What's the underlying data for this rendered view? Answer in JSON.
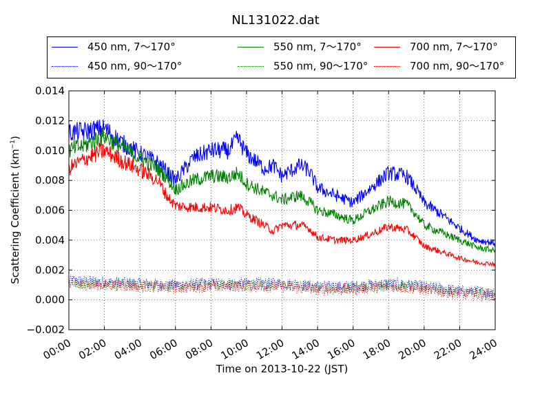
{
  "chart_data": {
    "type": "line",
    "title": "NL131022.dat",
    "xlabel": "Time on 2013-10-22 (JST)",
    "ylabel_main": "Scattering Coefficient (km",
    "ylabel_sup": "−1",
    "ylabel_end": ")",
    "xlim": [
      0,
      24
    ],
    "ylim": [
      -0.002,
      0.014
    ],
    "x_ticks": [
      "00:00",
      "02:00",
      "04:00",
      "06:00",
      "08:00",
      "10:00",
      "12:00",
      "14:00",
      "16:00",
      "18:00",
      "20:00",
      "22:00",
      "24:00"
    ],
    "y_ticks": [
      "−0.002",
      "0.000",
      "0.002",
      "0.004",
      "0.006",
      "0.008",
      "0.010",
      "0.012",
      "0.014"
    ],
    "grid": true,
    "legend_position": "top, above plot, 3 columns",
    "series": [
      {
        "name": "450 nm, 7～170°",
        "color": "#0000ff",
        "style": "solid",
        "x": [
          0,
          1,
          2,
          3,
          4,
          5,
          5.5,
          6,
          7,
          8,
          9,
          9.5,
          10,
          11,
          11.5,
          12,
          13,
          13.5,
          14,
          15,
          16,
          17,
          18,
          19,
          19.5,
          20,
          21,
          22,
          23,
          24
        ],
        "values": [
          0.0112,
          0.0113,
          0.0115,
          0.0105,
          0.0098,
          0.0092,
          0.0086,
          0.008,
          0.0095,
          0.01,
          0.01,
          0.0108,
          0.0098,
          0.0088,
          0.009,
          0.0083,
          0.009,
          0.0087,
          0.0075,
          0.007,
          0.0065,
          0.0075,
          0.0085,
          0.0083,
          0.0075,
          0.0065,
          0.0057,
          0.0048,
          0.004,
          0.0038
        ]
      },
      {
        "name": "550 nm, 7～170°",
        "color": "#008000",
        "style": "solid",
        "x": [
          0,
          1,
          2,
          3,
          4,
          5,
          5.5,
          6,
          7,
          8,
          9,
          9.5,
          10,
          11,
          11.5,
          12,
          13,
          13.5,
          14,
          15,
          16,
          17,
          18,
          19,
          19.5,
          20,
          21,
          22,
          23,
          24
        ],
        "values": [
          0.01,
          0.0104,
          0.011,
          0.0102,
          0.0095,
          0.0088,
          0.0082,
          0.0074,
          0.008,
          0.0083,
          0.0082,
          0.0085,
          0.0078,
          0.0072,
          0.007,
          0.0067,
          0.007,
          0.0066,
          0.006,
          0.0057,
          0.0053,
          0.006,
          0.0066,
          0.0064,
          0.0058,
          0.005,
          0.0045,
          0.004,
          0.0035,
          0.0033
        ]
      },
      {
        "name": "700 nm, 7～170°",
        "color": "#ff0000",
        "style": "solid",
        "x": [
          0,
          1,
          2,
          3,
          4,
          5,
          5.5,
          6,
          7,
          8,
          9,
          9.5,
          10,
          11,
          11.5,
          12,
          13,
          13.5,
          14,
          15,
          16,
          17,
          18,
          19,
          19.5,
          20,
          21,
          22,
          23,
          24
        ],
        "values": [
          0.0088,
          0.0095,
          0.01,
          0.0093,
          0.0087,
          0.008,
          0.007,
          0.0063,
          0.0062,
          0.0062,
          0.006,
          0.0062,
          0.0057,
          0.005,
          0.0046,
          0.005,
          0.005,
          0.0048,
          0.0042,
          0.004,
          0.004,
          0.0044,
          0.0049,
          0.0047,
          0.0042,
          0.0036,
          0.0032,
          0.0028,
          0.0025,
          0.0024
        ]
      },
      {
        "name": "450 nm, 90～170°",
        "color": "#0000ff",
        "style": "dotted",
        "x": [
          0,
          2,
          4,
          6,
          8,
          10,
          12,
          14,
          16,
          18,
          20,
          22,
          24
        ],
        "values": [
          0.0013,
          0.0012,
          0.0011,
          0.001,
          0.0011,
          0.0011,
          0.0011,
          0.0009,
          0.0009,
          0.0011,
          0.0009,
          0.0006,
          0.0005
        ]
      },
      {
        "name": "550 nm, 90～170°",
        "color": "#008000",
        "style": "dotted",
        "x": [
          0,
          2,
          4,
          6,
          8,
          10,
          12,
          14,
          16,
          18,
          20,
          22,
          24
        ],
        "values": [
          0.0011,
          0.0011,
          0.001,
          0.0009,
          0.001,
          0.001,
          0.001,
          0.0008,
          0.0008,
          0.001,
          0.0008,
          0.0005,
          0.0004
        ]
      },
      {
        "name": "700 nm, 90～170°",
        "color": "#ff0000",
        "style": "dotted",
        "x": [
          0,
          2,
          4,
          6,
          8,
          10,
          12,
          14,
          16,
          18,
          20,
          22,
          24
        ],
        "values": [
          0.001,
          0.001,
          0.0009,
          0.0008,
          0.0009,
          0.0009,
          0.0009,
          0.0007,
          0.0007,
          0.0009,
          0.0007,
          0.0004,
          0.0003
        ]
      }
    ]
  }
}
